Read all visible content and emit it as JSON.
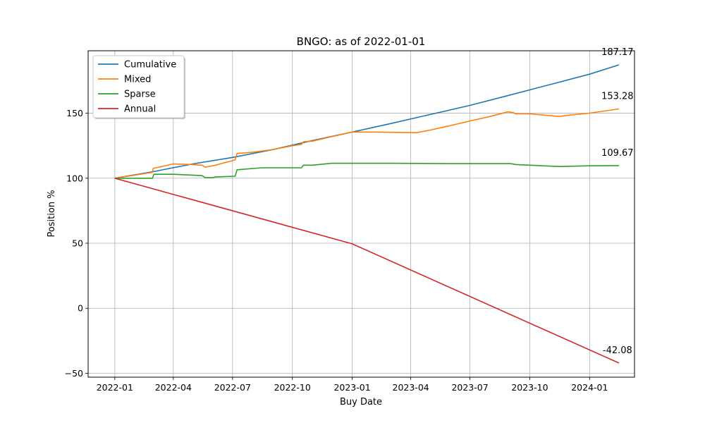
{
  "chart_data": {
    "type": "line",
    "title": "BNGO: as of 2022-01-01",
    "xlabel": "Buy Date",
    "ylabel": "Position %",
    "xlim": [
      "2021-11-21",
      "2024-03-10"
    ],
    "ylim": [
      -53,
      198
    ],
    "xticks": [
      "2022-01",
      "2022-04",
      "2022-07",
      "2022-10",
      "2023-01",
      "2023-04",
      "2023-07",
      "2023-10",
      "2024-01"
    ],
    "yticks": [
      -50,
      0,
      50,
      100,
      150
    ],
    "ytick_labels": [
      "−50",
      "0",
      "50",
      "100",
      "150"
    ],
    "grid": true,
    "legend_position": "top-left",
    "series": [
      {
        "name": "Cumulative",
        "color": "#1f77b4",
        "end_label": "187.17",
        "points": [
          [
            "2022-01-01",
            100
          ],
          [
            "2022-03-01",
            105
          ],
          [
            "2022-05-01",
            111
          ],
          [
            "2022-07-01",
            116
          ],
          [
            "2022-09-01",
            122
          ],
          [
            "2022-11-01",
            129
          ],
          [
            "2023-01-01",
            135.5
          ],
          [
            "2023-03-01",
            142
          ],
          [
            "2023-05-01",
            149
          ],
          [
            "2023-07-01",
            156
          ],
          [
            "2023-09-01",
            164
          ],
          [
            "2023-11-01",
            172
          ],
          [
            "2024-01-01",
            180
          ],
          [
            "2024-02-15",
            187.17
          ]
        ]
      },
      {
        "name": "Mixed",
        "color": "#ff7f0e",
        "end_label": "153.28",
        "points": [
          [
            "2022-01-01",
            100
          ],
          [
            "2022-02-28",
            104.5
          ],
          [
            "2022-03-01",
            107.5
          ],
          [
            "2022-04-01",
            111
          ],
          [
            "2022-05-01",
            110.5
          ],
          [
            "2022-05-15",
            110
          ],
          [
            "2022-05-20",
            108.5
          ],
          [
            "2022-06-01",
            109.5
          ],
          [
            "2022-07-05",
            114
          ],
          [
            "2022-07-08",
            119
          ],
          [
            "2022-08-01",
            120
          ],
          [
            "2022-09-01",
            122
          ],
          [
            "2022-10-01",
            125
          ],
          [
            "2022-10-15",
            126
          ],
          [
            "2022-10-18",
            128
          ],
          [
            "2022-11-01",
            128.5
          ],
          [
            "2022-12-01",
            132
          ],
          [
            "2023-01-01",
            135.5
          ],
          [
            "2023-02-01",
            135.5
          ],
          [
            "2023-04-10",
            135
          ],
          [
            "2023-05-01",
            137
          ],
          [
            "2023-06-01",
            140.5
          ],
          [
            "2023-07-01",
            144
          ],
          [
            "2023-08-01",
            147.5
          ],
          [
            "2023-08-28",
            151
          ],
          [
            "2023-09-05",
            150.5
          ],
          [
            "2023-09-10",
            149.5
          ],
          [
            "2023-10-01",
            149.5
          ],
          [
            "2023-11-15",
            147.5
          ],
          [
            "2023-12-01",
            148.5
          ],
          [
            "2024-01-01",
            150
          ],
          [
            "2024-02-15",
            153.28
          ]
        ]
      },
      {
        "name": "Sparse",
        "color": "#2ca02c",
        "end_label": "109.67",
        "points": [
          [
            "2022-01-01",
            100
          ],
          [
            "2022-02-28",
            100
          ],
          [
            "2022-03-02",
            103
          ],
          [
            "2022-04-01",
            103
          ],
          [
            "2022-05-15",
            102
          ],
          [
            "2022-05-20",
            100.5
          ],
          [
            "2022-06-01",
            100.5
          ],
          [
            "2022-06-05",
            101
          ],
          [
            "2022-07-05",
            101.5
          ],
          [
            "2022-07-08",
            106.5
          ],
          [
            "2022-08-15",
            108
          ],
          [
            "2022-10-01",
            108
          ],
          [
            "2022-10-15",
            108
          ],
          [
            "2022-10-18",
            110
          ],
          [
            "2022-11-01",
            110
          ],
          [
            "2022-12-01",
            111.5
          ],
          [
            "2023-03-01",
            111.5
          ],
          [
            "2023-06-01",
            111.2
          ],
          [
            "2023-09-01",
            111.2
          ],
          [
            "2023-09-10",
            110.5
          ],
          [
            "2023-11-15",
            109
          ],
          [
            "2024-01-01",
            109.5
          ],
          [
            "2024-02-15",
            109.67
          ]
        ]
      },
      {
        "name": "Annual",
        "color": "#d62728",
        "end_label": "-42.08",
        "points": [
          [
            "2022-01-01",
            100
          ],
          [
            "2023-01-01",
            49.5
          ],
          [
            "2024-02-15",
            -42.08
          ]
        ]
      }
    ]
  }
}
